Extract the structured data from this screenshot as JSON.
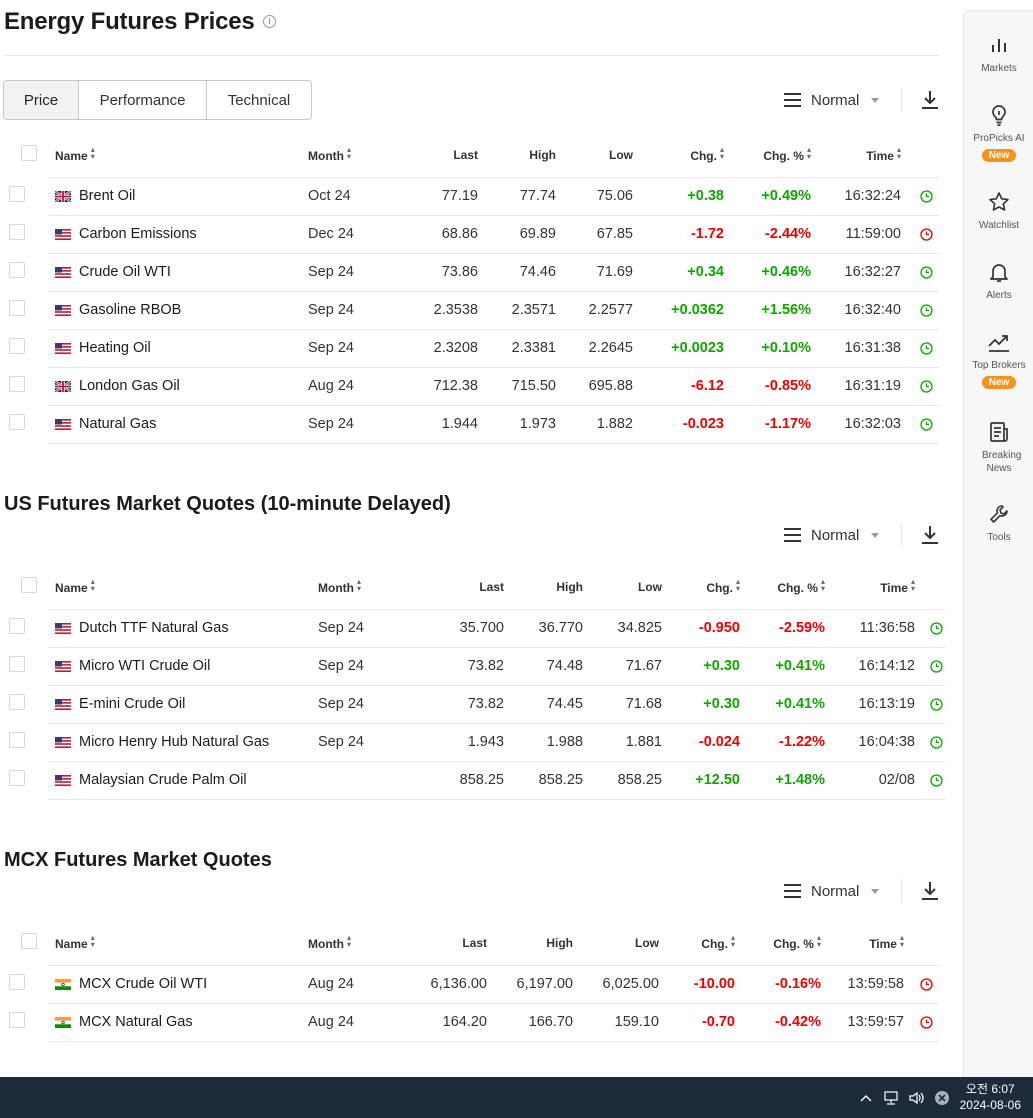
{
  "page": {
    "title": "Energy Futures Prices",
    "tabs": [
      {
        "label": "Price",
        "active": true
      },
      {
        "label": "Performance",
        "active": false
      },
      {
        "label": "Technical",
        "active": false
      }
    ],
    "view_mode": "Normal"
  },
  "colors": {
    "positive": "#0ea600",
    "negative": "#e00000",
    "badge": "#f7931a",
    "taskbar": "#1d2b3b"
  },
  "columns": {
    "name": "Name",
    "month": "Month",
    "last": "Last",
    "high": "High",
    "low": "Low",
    "chg": "Chg.",
    "chg_pct": "Chg. %",
    "time": "Time"
  },
  "sections": [
    {
      "title": "",
      "rows": [
        {
          "flag": "uk",
          "name": "Brent Oil",
          "month": "Oct 24",
          "last": "77.19",
          "high": "77.74",
          "low": "75.06",
          "chg": "+0.38",
          "chg_pct": "+0.49%",
          "time": "16:32:24",
          "dir": "up",
          "status": "open"
        },
        {
          "flag": "us",
          "name": "Carbon Emissions",
          "month": "Dec 24",
          "last": "68.86",
          "high": "69.89",
          "low": "67.85",
          "chg": "-1.72",
          "chg_pct": "-2.44%",
          "time": "11:59:00",
          "dir": "down",
          "status": "closed"
        },
        {
          "flag": "us",
          "name": "Crude Oil WTI",
          "month": "Sep 24",
          "last": "73.86",
          "high": "74.46",
          "low": "71.69",
          "chg": "+0.34",
          "chg_pct": "+0.46%",
          "time": "16:32:27",
          "dir": "up",
          "status": "open"
        },
        {
          "flag": "us",
          "name": "Gasoline RBOB",
          "month": "Sep 24",
          "last": "2.3538",
          "high": "2.3571",
          "low": "2.2577",
          "chg": "+0.0362",
          "chg_pct": "+1.56%",
          "time": "16:32:40",
          "dir": "up",
          "status": "open"
        },
        {
          "flag": "us",
          "name": "Heating Oil",
          "month": "Sep 24",
          "last": "2.3208",
          "high": "2.3381",
          "low": "2.2645",
          "chg": "+0.0023",
          "chg_pct": "+0.10%",
          "time": "16:31:38",
          "dir": "up",
          "status": "open"
        },
        {
          "flag": "uk",
          "name": "London Gas Oil",
          "month": "Aug 24",
          "last": "712.38",
          "high": "715.50",
          "low": "695.88",
          "chg": "-6.12",
          "chg_pct": "-0.85%",
          "time": "16:31:19",
          "dir": "down",
          "status": "open"
        },
        {
          "flag": "us",
          "name": "Natural Gas",
          "month": "Sep 24",
          "last": "1.944",
          "high": "1.973",
          "low": "1.882",
          "chg": "-0.023",
          "chg_pct": "-1.17%",
          "time": "16:32:03",
          "dir": "down",
          "status": "open"
        }
      ]
    },
    {
      "title": "US Futures Market Quotes (10-minute Delayed)",
      "rows": [
        {
          "flag": "us",
          "name": "Dutch TTF Natural Gas",
          "month": "Sep 24",
          "last": "35.700",
          "high": "36.770",
          "low": "34.825",
          "chg": "-0.950",
          "chg_pct": "-2.59%",
          "time": "11:36:58",
          "dir": "down",
          "status": "open"
        },
        {
          "flag": "us",
          "name": "Micro WTI Crude Oil",
          "month": "Sep 24",
          "last": "73.82",
          "high": "74.48",
          "low": "71.67",
          "chg": "+0.30",
          "chg_pct": "+0.41%",
          "time": "16:14:12",
          "dir": "up",
          "status": "open"
        },
        {
          "flag": "us",
          "name": "E-mini Crude Oil",
          "month": "Sep 24",
          "last": "73.82",
          "high": "74.45",
          "low": "71.68",
          "chg": "+0.30",
          "chg_pct": "+0.41%",
          "time": "16:13:19",
          "dir": "up",
          "status": "open"
        },
        {
          "flag": "us",
          "name": "Micro Henry Hub Natural Gas",
          "month": "Sep 24",
          "last": "1.943",
          "high": "1.988",
          "low": "1.881",
          "chg": "-0.024",
          "chg_pct": "-1.22%",
          "time": "16:04:38",
          "dir": "down",
          "status": "open"
        },
        {
          "flag": "us",
          "name": "Malaysian Crude Palm Oil",
          "month": "",
          "last": "858.25",
          "high": "858.25",
          "low": "858.25",
          "chg": "+12.50",
          "chg_pct": "+1.48%",
          "time": "02/08",
          "dir": "up",
          "status": "open"
        }
      ]
    },
    {
      "title": "MCX Futures Market Quotes",
      "rows": [
        {
          "flag": "in",
          "name": "MCX Crude Oil WTI",
          "month": "Aug 24",
          "last": "6,136.00",
          "high": "6,197.00",
          "low": "6,025.00",
          "chg": "-10.00",
          "chg_pct": "-0.16%",
          "time": "13:59:58",
          "dir": "down",
          "status": "closed"
        },
        {
          "flag": "in",
          "name": "MCX Natural Gas",
          "month": "Aug 24",
          "last": "164.20",
          "high": "166.70",
          "low": "159.10",
          "chg": "-0.70",
          "chg_pct": "-0.42%",
          "time": "13:59:57",
          "dir": "down",
          "status": "closed"
        }
      ]
    }
  ],
  "sidebar": [
    {
      "icon": "markets-icon",
      "label": "Markets",
      "badge": ""
    },
    {
      "icon": "lightbulb-icon",
      "label": "ProPicks AI",
      "badge": "New"
    },
    {
      "icon": "star-icon",
      "label": "Watchlist",
      "badge": ""
    },
    {
      "icon": "bell-icon",
      "label": "Alerts",
      "badge": ""
    },
    {
      "icon": "trend-icon",
      "label": "Top Brokers",
      "badge": "New"
    },
    {
      "icon": "news-icon",
      "label": "Breaking News",
      "badge": ""
    },
    {
      "icon": "wrench-icon",
      "label": "Tools",
      "badge": ""
    }
  ],
  "taskbar": {
    "time": "오전 6:07",
    "date": "2024-08-06"
  }
}
